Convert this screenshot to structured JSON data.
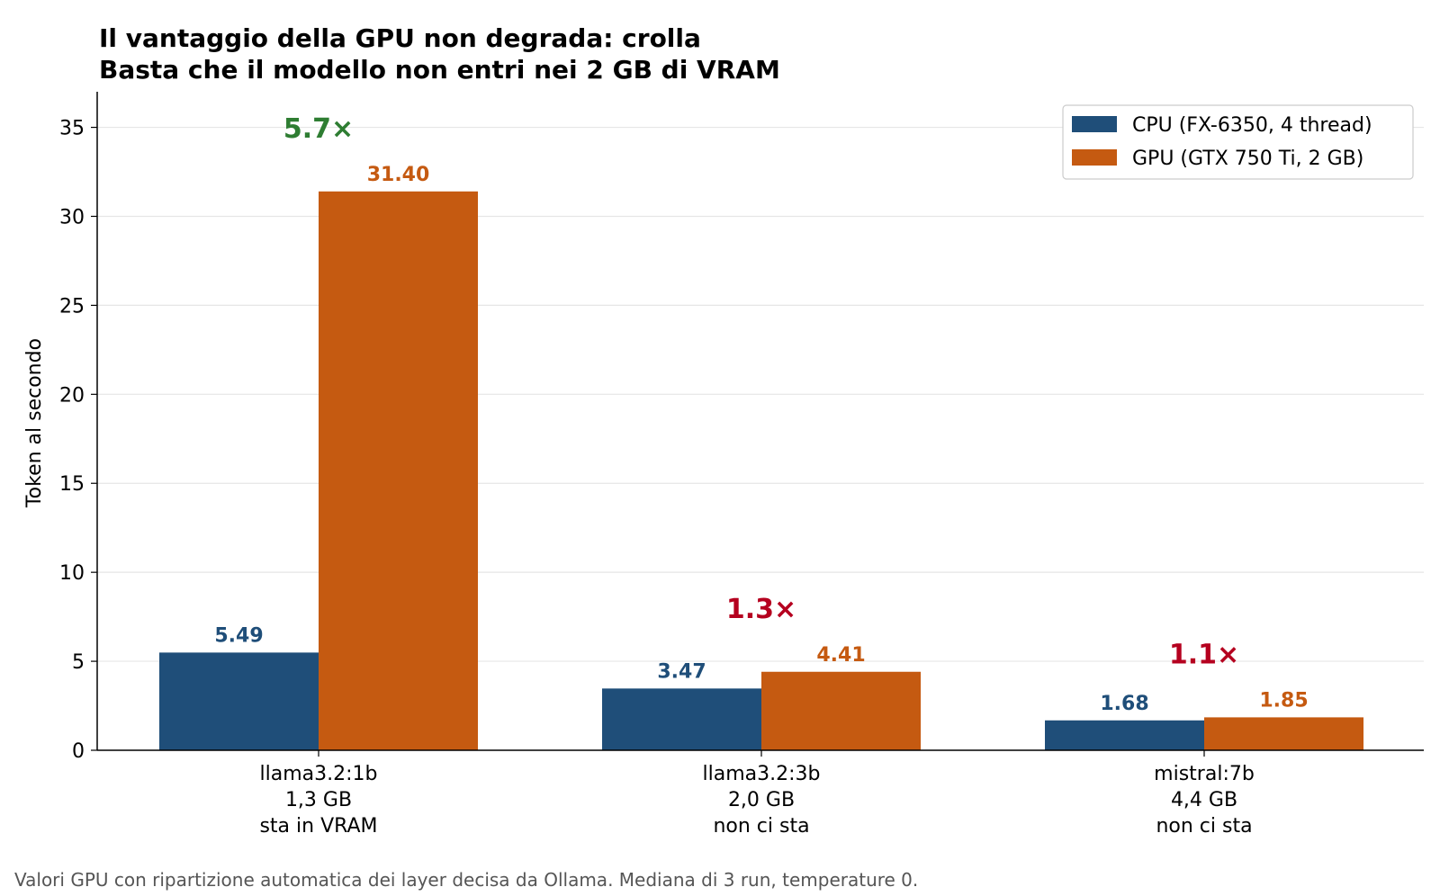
{
  "colors": {
    "cpu": "#1f4e79",
    "gpu": "#c55a11",
    "ratio_good": "#2e7d32",
    "ratio_bad": "#b5001f",
    "grid": "#e6e6e6",
    "footnote": "#555555"
  },
  "chart_data": {
    "type": "bar",
    "title": [
      "Il vantaggio della GPU non degrada: crolla",
      "Basta che il modello non entri nei 2 GB di VRAM"
    ],
    "ylabel": "Token al secondo",
    "xlabel": "",
    "ylim": [
      0,
      37
    ],
    "yticks": [
      0,
      5,
      10,
      15,
      20,
      25,
      30,
      35
    ],
    "grid": "horizontal",
    "legend_position": "top-right",
    "categories": [
      [
        "llama3.2:1b",
        "1,3 GB",
        "sta in VRAM"
      ],
      [
        "llama3.2:3b",
        "2,0 GB",
        "non ci sta"
      ],
      [
        "mistral:7b",
        "4,4 GB",
        "non ci sta"
      ]
    ],
    "series": [
      {
        "name": "CPU (FX-6350, 4 thread)",
        "values": [
          5.49,
          3.47,
          1.68
        ],
        "labels": [
          "5.49",
          "3.47",
          "1.68"
        ]
      },
      {
        "name": "GPU (GTX 750 Ti, 2 GB)",
        "values": [
          31.4,
          4.41,
          1.85
        ],
        "labels": [
          "31.40",
          "4.41",
          "1.85"
        ]
      }
    ],
    "annotations": [
      {
        "text": "5.7×",
        "color": "good"
      },
      {
        "text": "1.3×",
        "color": "bad"
      },
      {
        "text": "1.1×",
        "color": "bad"
      }
    ]
  },
  "footnote": "Valori GPU con ripartizione automatica dei layer decisa da Ollama. Mediana di 3 run, temperature 0."
}
